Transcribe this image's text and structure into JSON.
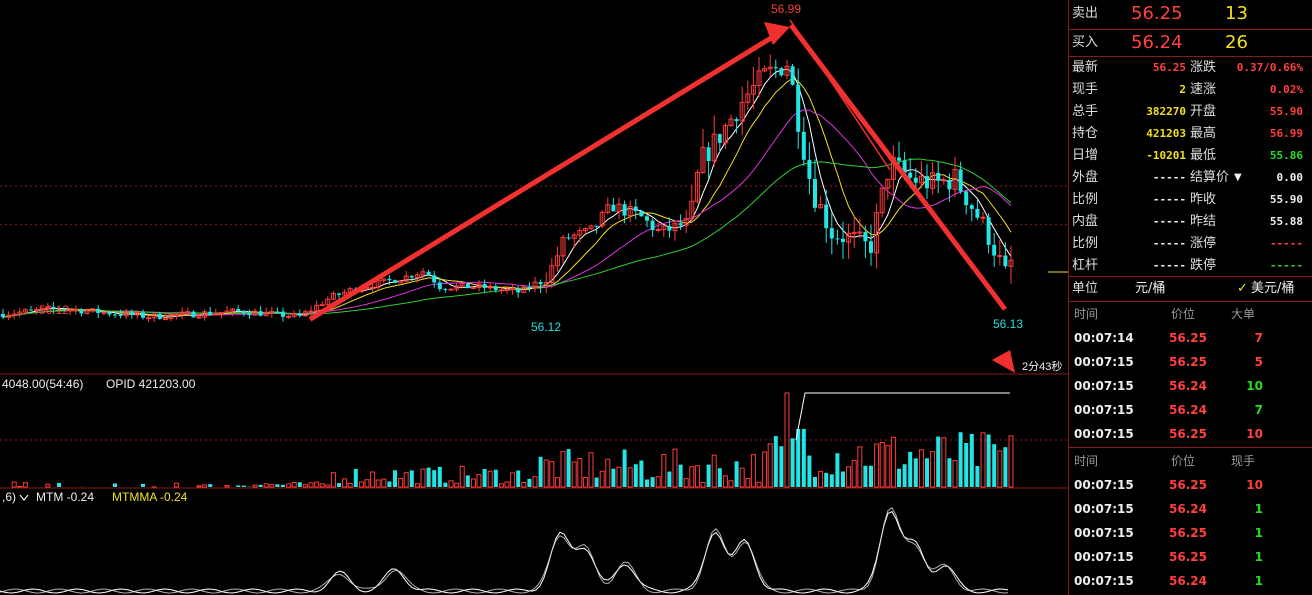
{
  "chart_data": {
    "type": "candlestick",
    "price_labels": {
      "peak": "56.99",
      "left_high": "56.12",
      "mid_low": "56.12",
      "right_low": "56.13",
      "countdown": "2分43秒"
    },
    "volume_header": "4048.00(54:46)",
    "volume_opid": "OPID 421203.00",
    "mtm_header_prefix": ",6)",
    "mtm_label": "MTM -0.24",
    "mtmma_label": "MTMMA -0.24",
    "mtm_value": -0.24,
    "mtmma_value": -0.24,
    "y_range": [
      55.75,
      57.05
    ],
    "guide_price": 56.25,
    "arrows": [
      {
        "from_price": 55.9,
        "to_price": 56.97
      },
      {
        "from_price": 56.97,
        "to_price": 55.93
      }
    ],
    "colors": {
      "up": "#ff3a3a",
      "down": "#22e5e5",
      "arrow": "#f23030",
      "ma5": "#ffffff",
      "ma10": "#f0e020",
      "ma20": "#dd33dd",
      "ma40": "#33cc33",
      "grid": "#8b1a1a"
    }
  },
  "quote": {
    "sell_label": "卖出",
    "sell_price": "56.25",
    "sell_qty": "13",
    "buy_label": "买入",
    "buy_price": "56.24",
    "buy_qty": "26"
  },
  "stats_left": [
    {
      "label": "最新",
      "value": "56.25",
      "color": "red"
    },
    {
      "label": "现手",
      "value": "2",
      "color": "yellow"
    },
    {
      "label": "总手",
      "value": "382270",
      "color": "yellow"
    },
    {
      "label": "持仓",
      "value": "421203",
      "color": "yellow"
    },
    {
      "label": "日增",
      "value": "-10201",
      "color": "yellow"
    },
    {
      "label": "外盘",
      "value": "-----",
      "color": "white"
    },
    {
      "label": "比例",
      "value": "-----",
      "color": "white"
    },
    {
      "label": "内盘",
      "value": "-----",
      "color": "white"
    },
    {
      "label": "比例",
      "value": "-----",
      "color": "white"
    },
    {
      "label": "杠杆",
      "value": "-----",
      "color": "white"
    }
  ],
  "stats_right": [
    {
      "label": "涨跌",
      "value": "0.37/0.66%",
      "color": "red"
    },
    {
      "label": "速涨",
      "value": "0.02%",
      "color": "red"
    },
    {
      "label": "开盘",
      "value": "55.90",
      "color": "red"
    },
    {
      "label": "最高",
      "value": "56.99",
      "color": "red"
    },
    {
      "label": "最低",
      "value": "55.86",
      "color": "green"
    },
    {
      "label": "结算价",
      "value": "0.00",
      "color": "white"
    },
    {
      "label": "昨收",
      "value": "55.90",
      "color": "white"
    },
    {
      "label": "昨结",
      "value": "55.88",
      "color": "white"
    },
    {
      "label": "涨停",
      "value": "-----",
      "color": "red"
    },
    {
      "label": "跌停",
      "value": "-----",
      "color": "green"
    }
  ],
  "unit_row": {
    "label": "单位",
    "value": "元/桶",
    "option": "美元/桶"
  },
  "big_orders": {
    "headers": [
      "时间",
      "价位",
      "大单"
    ],
    "rows": [
      {
        "time": "00:07:14",
        "price": "56.25",
        "qty": "7",
        "qcolor": "red"
      },
      {
        "time": "00:07:15",
        "price": "56.25",
        "qty": "5",
        "qcolor": "red"
      },
      {
        "time": "00:07:15",
        "price": "56.24",
        "qty": "10",
        "qcolor": "green"
      },
      {
        "time": "00:07:15",
        "price": "56.24",
        "qty": "7",
        "qcolor": "green"
      },
      {
        "time": "00:07:15",
        "price": "56.25",
        "qty": "10",
        "qcolor": "red"
      }
    ]
  },
  "ticks": {
    "headers": [
      "时间",
      "价位",
      "现手"
    ],
    "rows": [
      {
        "time": "00:07:15",
        "price": "56.25",
        "qty": "10",
        "qcolor": "red"
      },
      {
        "time": "00:07:15",
        "price": "56.24",
        "qty": "1",
        "qcolor": "green"
      },
      {
        "time": "00:07:15",
        "price": "56.25",
        "qty": "1",
        "qcolor": "green"
      },
      {
        "time": "00:07:15",
        "price": "56.25",
        "qty": "1",
        "qcolor": "green"
      },
      {
        "time": "00:07:15",
        "price": "56.24",
        "qty": "1",
        "qcolor": "green"
      }
    ]
  }
}
